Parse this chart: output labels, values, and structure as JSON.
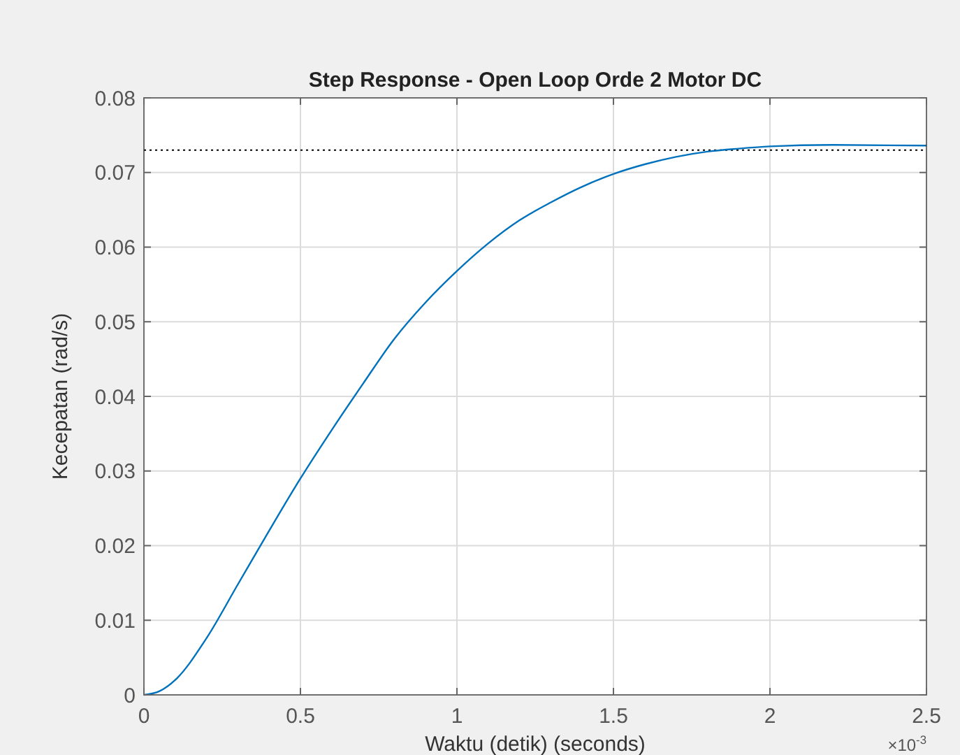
{
  "chart_data": {
    "type": "line",
    "title": "Step Response - Open Loop Orde 2 Motor DC",
    "xlabel": "Waktu (detik) (seconds)",
    "ylabel": "Kecepatan (rad/s)",
    "annotations": [
      "×10$^{-3}$"
    ],
    "x": [
      0,
      0.05,
      0.1,
      0.2,
      0.3,
      0.4,
      0.5,
      0.6,
      0.7,
      0.8,
      0.9,
      1.0,
      1.1,
      1.2,
      1.3,
      1.4,
      1.5,
      1.6,
      1.7,
      1.8,
      1.9,
      2.0,
      2.2,
      2.5
    ],
    "series": [
      {
        "color": "#0072bd",
        "values": [
          0,
          0.0005,
          0.002,
          0.0076,
          0.0148,
          0.022,
          0.029,
          0.0355,
          0.0417,
          0.0477,
          0.0526,
          0.0568,
          0.0605,
          0.0636,
          0.066,
          0.0681,
          0.0698,
          0.0711,
          0.0721,
          0.0728,
          0.0732,
          0.0735,
          0.0737,
          0.0736
        ]
      }
    ],
    "ref_lines": [
      {
        "axis": "y",
        "value": 0.073,
        "color": "#000000",
        "line_style": "dotted"
      }
    ],
    "xlim": [
      0,
      2.5
    ],
    "xticks": [
      0,
      0.5,
      1,
      1.5,
      2,
      2.5
    ],
    "ylim": [
      0,
      0.08
    ],
    "yticks": [
      0,
      0.01,
      0.02,
      0.03,
      0.04,
      0.05,
      0.06,
      0.07,
      0.08
    ],
    "grid": true,
    "line_style": "solid",
    "marker": "none"
  }
}
